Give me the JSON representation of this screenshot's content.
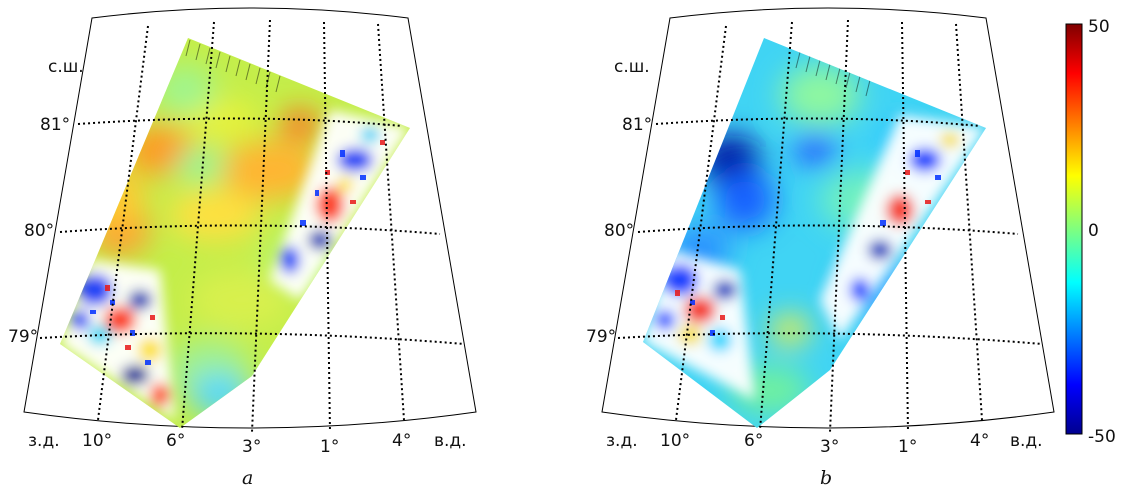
{
  "panels": [
    {
      "id": "a",
      "caption": "a",
      "north_label": "с.ш.",
      "west_label": "з.д.",
      "east_label": "в.д.",
      "lat_labels": [
        "81°",
        "80°",
        "79°"
      ],
      "lon_labels": [
        "10°",
        "6°",
        "3°",
        "1°",
        "4°"
      ]
    },
    {
      "id": "b",
      "caption": "b",
      "north_label": "с.ш.",
      "west_label": "з.д.",
      "east_label": "в.д.",
      "lat_labels": [
        "81°",
        "80°",
        "79°"
      ],
      "lon_labels": [
        "10°",
        "6°",
        "3°",
        "1°",
        "4°"
      ]
    }
  ],
  "colorbar": {
    "max_label": "50",
    "mid_label": "0",
    "min_label": "-50",
    "colormap": "jet",
    "range": [
      -50,
      50
    ]
  },
  "colors": {
    "grid": "#000000",
    "frame": "#000000",
    "noise": "#ffffff"
  }
}
